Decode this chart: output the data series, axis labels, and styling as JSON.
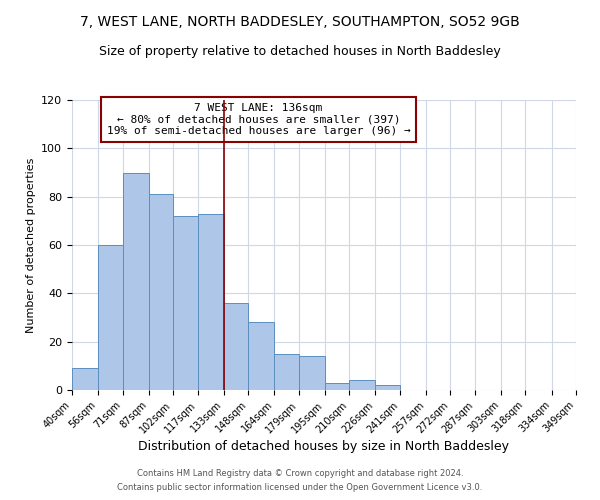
{
  "title1": "7, WEST LANE, NORTH BADDESLEY, SOUTHAMPTON, SO52 9GB",
  "title2": "Size of property relative to detached houses in North Baddesley",
  "xlabel": "Distribution of detached houses by size in North Baddesley",
  "ylabel": "Number of detached properties",
  "bar_edges": [
    40,
    56,
    71,
    87,
    102,
    117,
    133,
    148,
    164,
    179,
    195,
    210,
    226,
    241,
    257,
    272,
    287,
    303,
    318,
    334,
    349
  ],
  "bar_heights": [
    9,
    60,
    90,
    81,
    72,
    73,
    36,
    28,
    15,
    14,
    3,
    4,
    2,
    0,
    0,
    0,
    0,
    0,
    0,
    0
  ],
  "bar_color": "#aec6e8",
  "bar_edge_color": "#5a8fc0",
  "vline_x": 133,
  "vline_color": "#8b0000",
  "annotation_title": "7 WEST LANE: 136sqm",
  "annotation_line1": "← 80% of detached houses are smaller (397)",
  "annotation_line2": "19% of semi-detached houses are larger (96) →",
  "annotation_box_color": "#8b0000",
  "ylim": [
    0,
    120
  ],
  "tick_labels": [
    "40sqm",
    "56sqm",
    "71sqm",
    "87sqm",
    "102sqm",
    "117sqm",
    "133sqm",
    "148sqm",
    "164sqm",
    "179sqm",
    "195sqm",
    "210sqm",
    "226sqm",
    "241sqm",
    "257sqm",
    "272sqm",
    "287sqm",
    "303sqm",
    "318sqm",
    "334sqm",
    "349sqm"
  ],
  "footer1": "Contains HM Land Registry data © Crown copyright and database right 2024.",
  "footer2": "Contains public sector information licensed under the Open Government Licence v3.0.",
  "background_color": "#ffffff",
  "grid_color": "#d0d8e8",
  "title1_fontsize": 10,
  "title2_fontsize": 9,
  "annotation_fontsize": 8,
  "ylabel_fontsize": 8,
  "xlabel_fontsize": 9,
  "footer_fontsize": 6,
  "ytick_fontsize": 8,
  "xtick_fontsize": 7
}
